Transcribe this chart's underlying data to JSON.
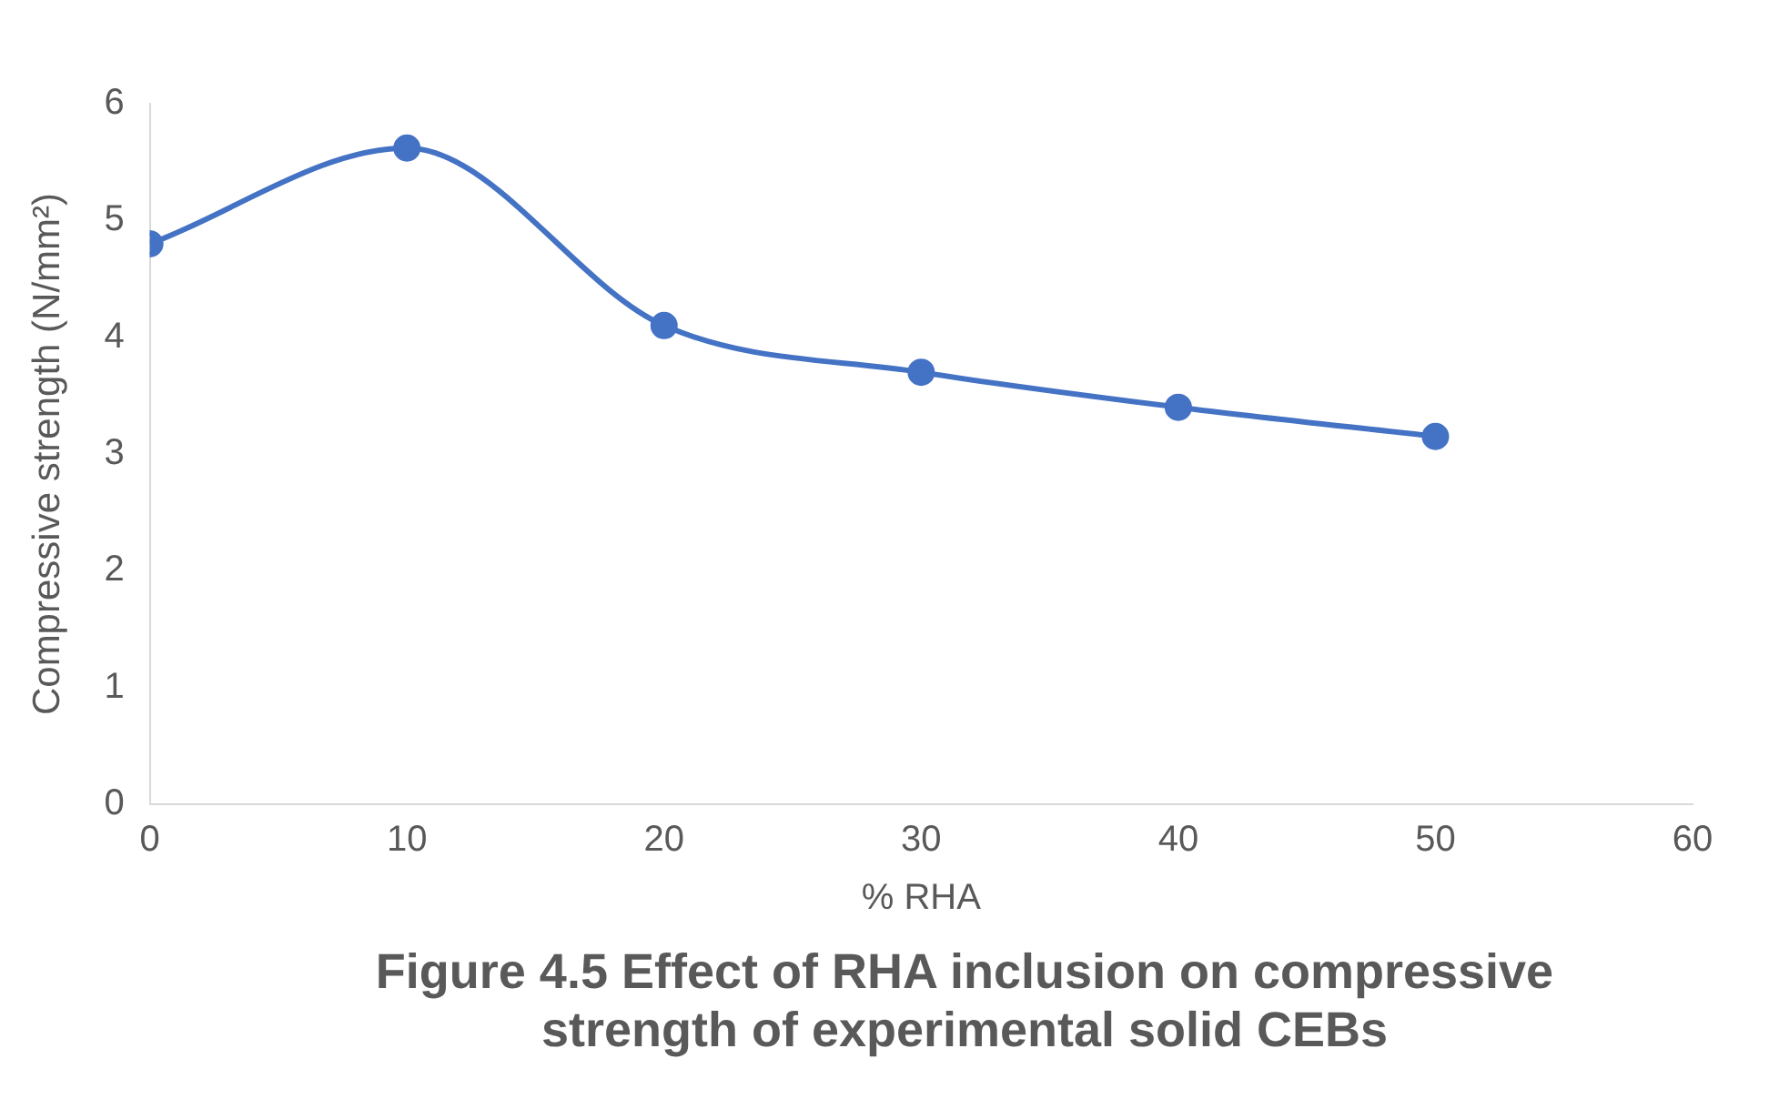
{
  "chart_data": {
    "type": "line",
    "title": "Figure 4.5 Effect of RHA inclusion on compressive strength of experimental solid CEBs",
    "xlabel": "% RHA",
    "ylabel": "Compressive strength (N/mm²)",
    "x": [
      0,
      10,
      20,
      30,
      40,
      50
    ],
    "series": [
      {
        "color": "#4472c4",
        "values": [
          4.8,
          5.62,
          4.1,
          3.7,
          3.4,
          3.15
        ]
      }
    ],
    "xlim": [
      0,
      60
    ],
    "xticks": [
      0,
      10,
      20,
      30,
      40,
      50,
      60
    ],
    "ylim": [
      0,
      6
    ],
    "yticks": [
      0,
      1,
      2,
      3,
      4,
      5,
      6
    ],
    "grid": false,
    "legend": false,
    "marker": "circle",
    "line_style": "solid"
  }
}
